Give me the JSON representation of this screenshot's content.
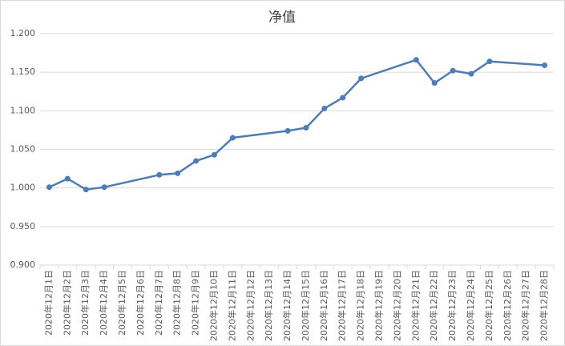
{
  "chart_data": {
    "type": "line",
    "title": "净值",
    "xticks": [
      "2020年12月1日",
      "2020年12月2日",
      "2020年12月3日",
      "2020年12月4日",
      "2020年12月5日",
      "2020年12月6日",
      "2020年12月7日",
      "2020年12月8日",
      "2020年12月9日",
      "2020年12月10日",
      "2020年12月11日",
      "2020年12月12日",
      "2020年12月13日",
      "2020年12月14日",
      "2020年12月15日",
      "2020年12月16日",
      "2020年12月17日",
      "2020年12月18日",
      "2020年12月19日",
      "2020年12月20日",
      "2020年12月21日",
      "2020年12月22日",
      "2020年12月23日",
      "2020年12月24日",
      "2020年12月25日",
      "2020年12月26日",
      "2020年12月27日",
      "2020年12月28日"
    ],
    "x": [
      "2020年12月1日",
      "2020年12月2日",
      "2020年12月3日",
      "2020年12月4日",
      "2020年12月7日",
      "2020年12月8日",
      "2020年12月9日",
      "2020年12月10日",
      "2020年12月11日",
      "2020年12月14日",
      "2020年12月15日",
      "2020年12月16日",
      "2020年12月17日",
      "2020年12月18日",
      "2020年12月21日",
      "2020年12月22日",
      "2020年12月23日",
      "2020年12月24日",
      "2020年12月25日",
      "2020年12月28日"
    ],
    "values": [
      1.001,
      1.012,
      0.998,
      1.001,
      1.017,
      1.019,
      1.035,
      1.043,
      1.065,
      1.074,
      1.078,
      1.103,
      1.117,
      1.142,
      1.166,
      1.136,
      1.152,
      1.148,
      1.164,
      1.159
    ],
    "color": "#4a7ebb",
    "ylim": [
      0.9,
      1.2
    ],
    "yticks": [
      {
        "value": 0.9,
        "label": "0.900"
      },
      {
        "value": 0.95,
        "label": "0.950"
      },
      {
        "value": 1.0,
        "label": "1.000"
      },
      {
        "value": 1.05,
        "label": "1.050"
      },
      {
        "value": 1.1,
        "label": "1.100"
      },
      {
        "value": 1.15,
        "label": "1.150"
      },
      {
        "value": 1.2,
        "label": "1.200"
      }
    ],
    "grid": true
  }
}
